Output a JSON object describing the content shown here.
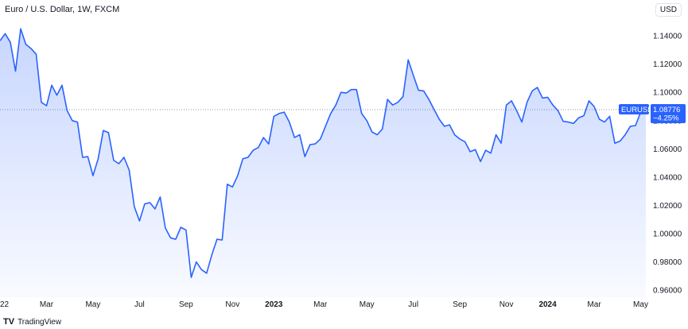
{
  "header": {
    "title": "Euro / U.S. Dollar, 1W, FXCM",
    "currency": "USD"
  },
  "branding": {
    "logo": "TV",
    "name": "TradingView"
  },
  "last_price": {
    "symbol": "EURUSD",
    "value": "1.08776",
    "change": "−4.25%"
  },
  "colors": {
    "line": "#2962ff",
    "area": "#2962ff",
    "tag": "#2962ff",
    "reference": "#9598a1"
  },
  "chart_data": {
    "type": "area",
    "x_tick_labels": [
      "22",
      "Mar",
      "May",
      "Jul",
      "Sep",
      "Nov",
      "2023",
      "Mar",
      "May",
      "Jul",
      "Sep",
      "Nov",
      "2024",
      "Mar",
      "May"
    ],
    "x_tick_weeks": [
      0,
      9,
      18,
      27,
      36,
      45,
      53,
      62,
      71,
      80,
      89,
      98,
      106,
      115,
      124
    ],
    "y_tick_labels": [
      "1.14000",
      "1.12000",
      "1.10000",
      "1.08000",
      "1.06000",
      "1.04000",
      "1.02000",
      "1.00000",
      "0.98000",
      "0.96000"
    ],
    "y_ticks": [
      1.14,
      1.12,
      1.1,
      1.08,
      1.06,
      1.04,
      1.02,
      1.0,
      0.98,
      0.96
    ],
    "ylim": [
      0.955,
      1.153
    ],
    "reference_value": 1.08776,
    "values": [
      1.1365,
      1.1415,
      1.1355,
      1.115,
      1.145,
      1.134,
      1.131,
      1.127,
      1.093,
      1.0905,
      1.105,
      1.098,
      1.105,
      1.087,
      1.08,
      1.079,
      1.054,
      1.0545,
      1.041,
      1.053,
      1.073,
      1.0715,
      1.052,
      1.0495,
      1.054,
      1.045,
      1.019,
      1.009,
      1.021,
      1.022,
      1.0175,
      1.026,
      1.004,
      0.997,
      0.996,
      1.0045,
      1.0025,
      0.969,
      0.98,
      0.9745,
      0.972,
      0.985,
      0.996,
      0.9955,
      1.035,
      1.033,
      1.041,
      1.053,
      1.054,
      1.059,
      1.061,
      1.068,
      1.0635,
      1.083,
      1.085,
      1.086,
      1.079,
      1.068,
      1.07,
      1.0545,
      1.063,
      1.0635,
      1.067,
      1.076,
      1.085,
      1.091,
      1.1,
      1.0995,
      1.102,
      1.102,
      1.085,
      1.08,
      1.072,
      1.07,
      1.074,
      1.095,
      1.091,
      1.093,
      1.097,
      1.123,
      1.112,
      1.1015,
      1.101,
      1.095,
      1.088,
      1.081,
      1.076,
      1.077,
      1.07,
      1.067,
      1.065,
      1.058,
      1.0595,
      1.051,
      1.059,
      1.057,
      1.07,
      1.064,
      1.091,
      1.094,
      1.087,
      1.079,
      1.093,
      1.101,
      1.1035,
      1.096,
      1.0965,
      1.091,
      1.087,
      1.0795,
      1.079,
      1.078,
      1.082,
      1.0835,
      1.094,
      1.09,
      1.081,
      1.079,
      1.083,
      1.064,
      1.0655,
      1.07,
      1.076,
      1.0765,
      1.086,
      1.0878
    ]
  }
}
